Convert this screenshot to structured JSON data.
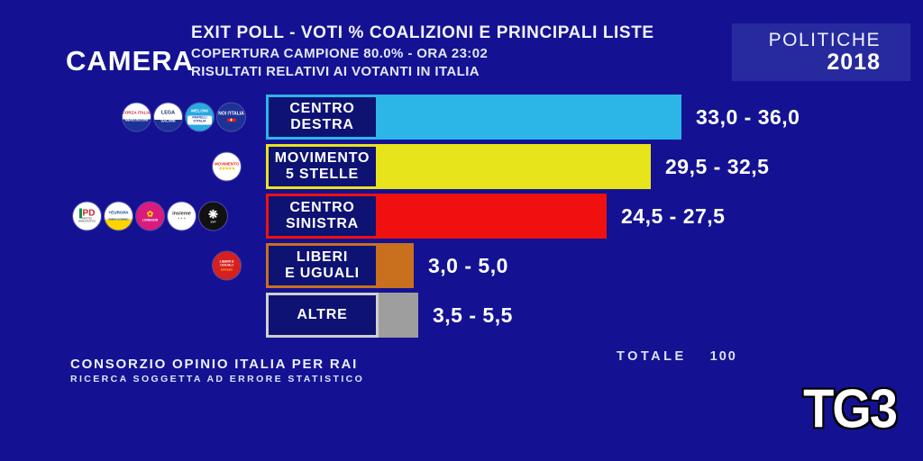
{
  "header": {
    "chamber": "CAMERA",
    "title": "EXIT POLL - VOTI % COALIZIONI E PRINCIPALI LISTE",
    "subtitle1": "COPERTURA CAMPIONE 80.0% - ORA 23:02",
    "subtitle2": "RISULTATI RELATIVI AI VOTANTI IN ITALIA",
    "event": "POLITICHE",
    "year": "2018"
  },
  "footer": {
    "source": "CONSORZIO OPINIO ITALIA PER RAI",
    "disclaimer": "RICERCA SOGGETTA AD ERRORE STATISTICO",
    "total_label": "TOTALE",
    "total_value": "100",
    "channel": "TG3"
  },
  "colors": {
    "background": "#141292",
    "label_box_fill": "#0e1273",
    "politiche_box": "#262a9e",
    "centro_destra": "#2cb6e8",
    "movimento_5_stelle": "#e8e41c",
    "centro_sinistra": "#f01010",
    "liberi_e_uguali": "#c9701e",
    "altre_bar": "#9e9e9e",
    "altre_border": "#cfcfcf"
  },
  "chart_data": {
    "type": "bar",
    "orientation": "horizontal",
    "unit": "percent of votes",
    "title": "EXIT POLL - VOTI % COALIZIONI E PRINCIPALI LISTE",
    "categories": [
      "CENTRO DESTRA",
      "MOVIMENTO 5 STELLE",
      "CENTRO SINISTRA",
      "LIBERI E UGUALI",
      "ALTRE"
    ],
    "total": 100,
    "bars": [
      {
        "label_line1": "CENTRO",
        "label_line2": "DESTRA",
        "range": [
          33.0,
          36.0
        ],
        "display": "33,0 - 36,0",
        "color": "#2cb6e8",
        "border_color": "#2cb6e8",
        "logos": [
          {
            "name": "forza-italia",
            "t1": "FORZA ITALIA",
            "t2": "BERLUSCONI"
          },
          {
            "name": "lega",
            "t1": "LEGA",
            "t2": "SALVINI"
          },
          {
            "name": "fratelli-ditalia",
            "t1": "MELONI",
            "t2": "FRATELLI D'ITALIA"
          },
          {
            "name": "noi-con-litalia",
            "t1": "NOI l'ITALIA",
            "t2": "✚"
          }
        ]
      },
      {
        "label_line1": "MOVIMENTO",
        "label_line2": "5 STELLE",
        "range": [
          29.5,
          32.5
        ],
        "display": "29,5 - 32,5",
        "color": "#e8e41c",
        "border_color": "#e8e41c",
        "logos": [
          {
            "name": "movimento-5-stelle",
            "t1": "MOVIMENTO",
            "t2": "★★★★★"
          }
        ]
      },
      {
        "label_line1": "CENTRO",
        "label_line2": "SINISTRA",
        "range": [
          24.5,
          27.5
        ],
        "display": "24,5 - 27,5",
        "color": "#f01010",
        "border_color": "#f01010",
        "logos": [
          {
            "name": "pd",
            "t1": "PD",
            "t2": "PARTITO DEMOCRATICO"
          },
          {
            "name": "piu-europa",
            "t1": "+EUROPA",
            "t2": "EMMA BONINO"
          },
          {
            "name": "civica-popolare",
            "t1": "✿",
            "t2": "LORENZIN"
          },
          {
            "name": "insieme",
            "t1": "insieme",
            "t2": "● ● ●"
          },
          {
            "name": "svp",
            "t1": "❋",
            "t2": "SVP"
          }
        ]
      },
      {
        "label_line1": "LIBERI",
        "label_line2": "E UGUALI",
        "range": [
          3.0,
          5.0
        ],
        "display": "3,0 - 5,0",
        "color": "#c9701e",
        "border_color": "#c9701e",
        "logos": [
          {
            "name": "liberi-e-uguali",
            "t1": "LIBERI E UGUALI",
            "t2": "GRASSO"
          }
        ]
      },
      {
        "label_line1": "ALTRE",
        "label_line2": "",
        "range": [
          3.5,
          5.5
        ],
        "display": "3,5 - 5,5",
        "color": "#9e9e9e",
        "border_color": "#cfcfcf",
        "logos": []
      }
    ]
  }
}
